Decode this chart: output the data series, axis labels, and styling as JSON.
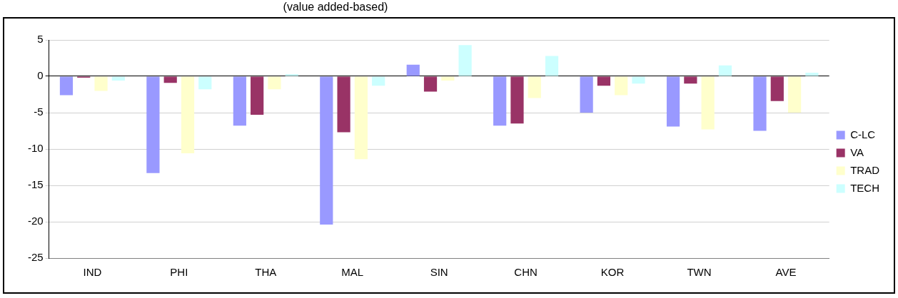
{
  "chart_data": {
    "type": "bar",
    "subtitle": "(value added-based)",
    "categories": [
      "IND",
      "PHI",
      "THA",
      "MAL",
      "SIN",
      "CHN",
      "KOR",
      "TWN",
      "AVE"
    ],
    "series": [
      {
        "name": "C-LC",
        "color": "#9999ff",
        "values": [
          -2.6,
          -13.3,
          -6.8,
          -20.4,
          1.6,
          -6.8,
          -5.0,
          -6.9,
          -7.5
        ]
      },
      {
        "name": "VA",
        "color": "#993366",
        "values": [
          -0.2,
          -0.9,
          -5.3,
          -7.7,
          -2.1,
          -6.5,
          -1.3,
          -1.0,
          -3.4
        ]
      },
      {
        "name": "TRAD",
        "color": "#ffffcc",
        "values": [
          -2.0,
          -10.6,
          -1.8,
          -11.4,
          -0.6,
          -3.0,
          -2.6,
          -7.3,
          -5.0
        ]
      },
      {
        "name": "TECH",
        "color": "#ccffff",
        "values": [
          -0.6,
          -1.8,
          0.3,
          -1.3,
          4.3,
          2.8,
          -1.0,
          1.5,
          0.5
        ]
      }
    ],
    "ylim": [
      -25,
      5
    ],
    "yticks": [
      -25,
      -20,
      -15,
      -10,
      -5,
      0,
      5
    ],
    "grid": "y",
    "legend": "right"
  }
}
